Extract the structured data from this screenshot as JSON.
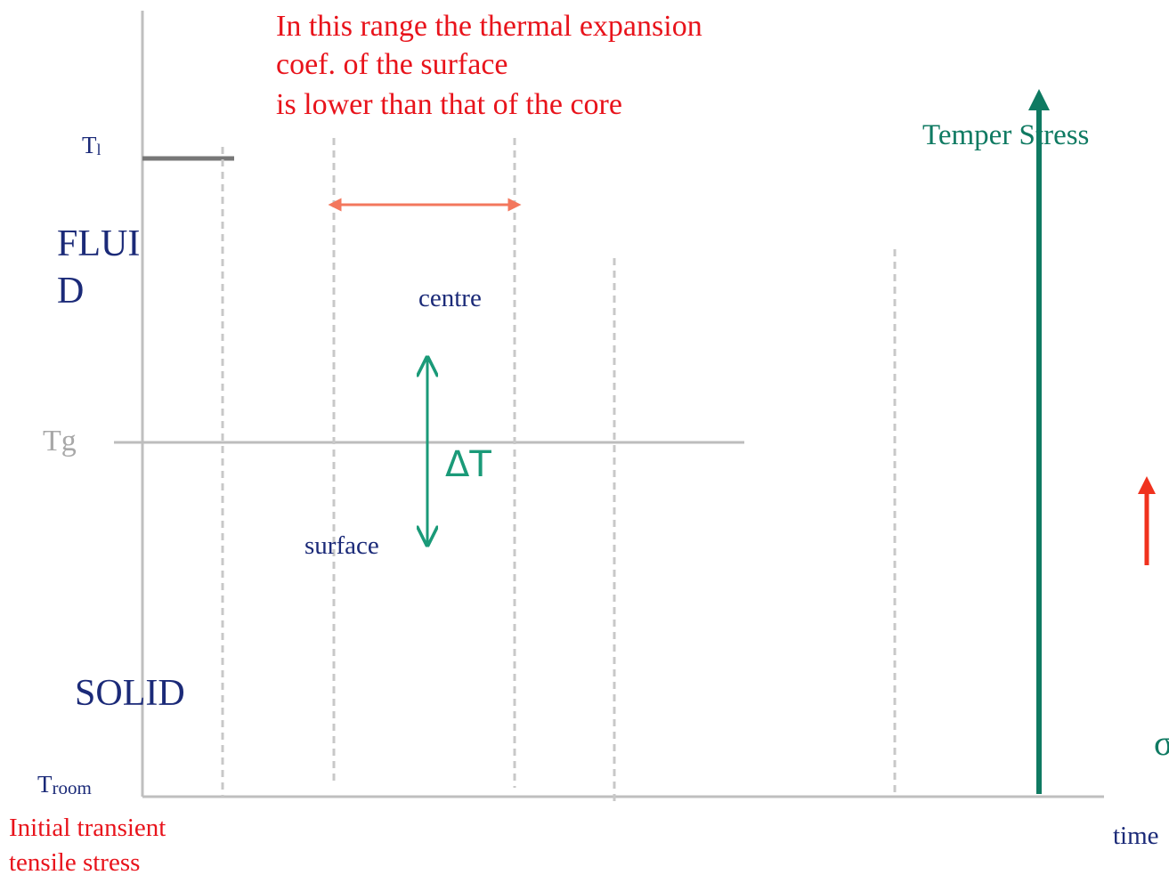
{
  "annotation": {
    "lines": [
      "In this range the thermal expansion",
      "coef. of the surface",
      "is lower than that of the core"
    ]
  },
  "temper_stress": "Temper Stress",
  "t_liquid": {
    "main": "T",
    "sub": "l"
  },
  "t_room": {
    "main": "T",
    "sub": "room"
  },
  "tg": "Tg",
  "fluid": [
    "FLUI",
    "D"
  ],
  "solid": "SOLID",
  "centre": "centre",
  "surface": "surface",
  "delta_t": "ΔT",
  "initial_stress": [
    "Initial transient",
    "tensile stress"
  ],
  "time": "time",
  "sigma": "σ"
}
